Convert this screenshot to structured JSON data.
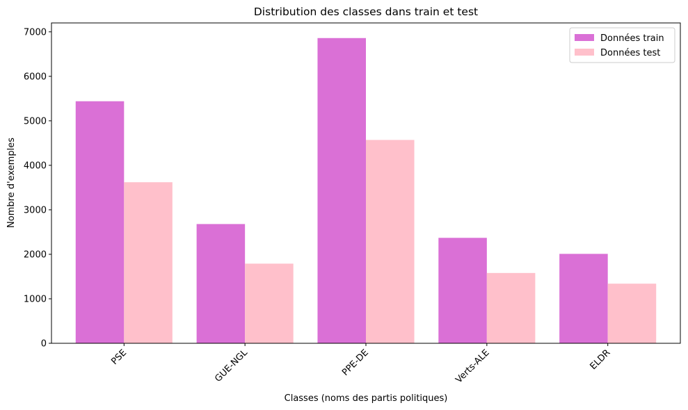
{
  "chart_data": {
    "type": "bar",
    "title": "Distribution des classes dans train et test",
    "xlabel": "Classes (noms des partis politiques)",
    "ylabel": "Nombre d'exemples",
    "categories": [
      "PSE",
      "GUE-NGL",
      "PPE-DE",
      "Verts-ALE",
      "ELDR"
    ],
    "series": [
      {
        "name": "Données train",
        "color": "#da70d6",
        "values": [
          5440,
          2680,
          6860,
          2370,
          2010
        ]
      },
      {
        "name": "Données test",
        "color": "#ffc0cb",
        "values": [
          3620,
          1790,
          4570,
          1580,
          1340
        ]
      }
    ],
    "ylim": [
      0,
      7200
    ],
    "yticks": [
      0,
      1000,
      2000,
      3000,
      4000,
      5000,
      6000,
      7000
    ],
    "grid": false,
    "legend_position": "top-right",
    "xtick_rotation": 45
  }
}
